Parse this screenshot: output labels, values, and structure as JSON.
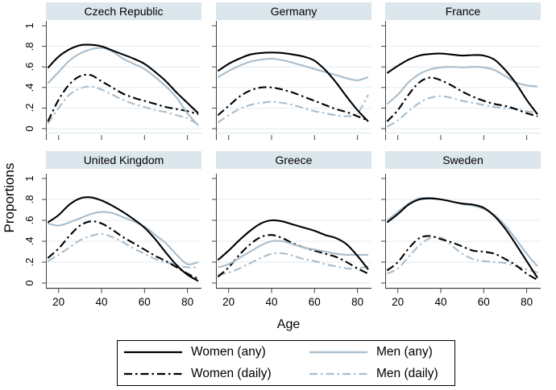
{
  "chart_data": {
    "type": "line",
    "title": "",
    "xlabel": "Age",
    "ylabel": "Proportions",
    "x": [
      15,
      20,
      25,
      30,
      35,
      40,
      45,
      50,
      55,
      60,
      65,
      70,
      75,
      80,
      85
    ],
    "xlim": [
      13,
      87
    ],
    "ylim": [
      0,
      1
    ],
    "grid": true,
    "x_tick_labels": [
      "20",
      "40",
      "60",
      "80"
    ],
    "x_tick_values": [
      20,
      40,
      60,
      80
    ],
    "y_tick_labels": [
      "0",
      ".2",
      ".4",
      ".6",
      ".8",
      "1"
    ],
    "y_tick_values": [
      0,
      0.2,
      0.4,
      0.6,
      0.8,
      1
    ],
    "legend_position": "bottom",
    "colors": {
      "women": "#000000",
      "men": "#a9bdcb",
      "panel_title_bg": "#dce6ed",
      "gridline": "#e3ebf1",
      "axis": "#444444"
    },
    "series_meta": [
      {
        "key": "women_any",
        "label": "Women (any)",
        "color": "#000000",
        "dash": "solid"
      },
      {
        "key": "men_any",
        "label": "Men (any)",
        "color": "#a9bdcb",
        "dash": "solid"
      },
      {
        "key": "women_daily",
        "label": "Women (daily)",
        "color": "#000000",
        "dash": "dashdot"
      },
      {
        "key": "men_daily",
        "label": "Men (daily)",
        "color": "#a9bdcb",
        "dash": "dashdot"
      }
    ],
    "panels": [
      {
        "title": "Czech Republic",
        "series": {
          "women_any": [
            0.59,
            0.7,
            0.77,
            0.81,
            0.815,
            0.8,
            0.76,
            0.72,
            0.68,
            0.63,
            0.55,
            0.46,
            0.35,
            0.25,
            0.15
          ],
          "men_any": [
            0.44,
            0.55,
            0.66,
            0.73,
            0.77,
            0.785,
            0.75,
            0.68,
            0.63,
            0.58,
            0.5,
            0.41,
            0.3,
            0.15,
            0.03
          ],
          "women_daily": [
            0.07,
            0.28,
            0.43,
            0.51,
            0.52,
            0.46,
            0.4,
            0.34,
            0.3,
            0.27,
            0.24,
            0.21,
            0.19,
            0.17,
            0.14
          ],
          "men_daily": [
            0.05,
            0.2,
            0.33,
            0.39,
            0.41,
            0.38,
            0.33,
            0.28,
            0.24,
            0.21,
            0.18,
            0.16,
            0.13,
            0.1,
            0.04
          ]
        }
      },
      {
        "title": "Germany",
        "series": {
          "women_any": [
            0.56,
            0.63,
            0.68,
            0.72,
            0.735,
            0.74,
            0.735,
            0.72,
            0.7,
            0.66,
            0.57,
            0.45,
            0.31,
            0.18,
            0.07
          ],
          "men_any": [
            0.5,
            0.56,
            0.61,
            0.65,
            0.67,
            0.68,
            0.665,
            0.64,
            0.61,
            0.58,
            0.55,
            0.52,
            0.49,
            0.47,
            0.5
          ],
          "women_daily": [
            0.13,
            0.22,
            0.31,
            0.37,
            0.4,
            0.4,
            0.38,
            0.35,
            0.31,
            0.27,
            0.23,
            0.19,
            0.16,
            0.12,
            0.08
          ],
          "men_daily": [
            0.06,
            0.13,
            0.19,
            0.23,
            0.25,
            0.26,
            0.25,
            0.23,
            0.2,
            0.17,
            0.15,
            0.13,
            0.12,
            0.15,
            0.33
          ]
        }
      },
      {
        "title": "France",
        "series": {
          "women_any": [
            0.54,
            0.61,
            0.67,
            0.71,
            0.725,
            0.73,
            0.72,
            0.71,
            0.715,
            0.71,
            0.67,
            0.57,
            0.44,
            0.28,
            0.14
          ],
          "men_any": [
            0.24,
            0.33,
            0.45,
            0.53,
            0.575,
            0.595,
            0.6,
            0.595,
            0.6,
            0.595,
            0.57,
            0.51,
            0.45,
            0.42,
            0.41
          ],
          "women_daily": [
            0.07,
            0.18,
            0.33,
            0.45,
            0.495,
            0.47,
            0.42,
            0.36,
            0.31,
            0.27,
            0.24,
            0.22,
            0.19,
            0.15,
            0.12
          ],
          "men_daily": [
            0.02,
            0.08,
            0.17,
            0.25,
            0.3,
            0.315,
            0.3,
            0.27,
            0.25,
            0.23,
            0.21,
            0.2,
            0.19,
            0.17,
            0.15
          ]
        }
      },
      {
        "title": "United Kingdom",
        "series": {
          "women_any": [
            0.58,
            0.65,
            0.75,
            0.81,
            0.82,
            0.79,
            0.74,
            0.68,
            0.61,
            0.53,
            0.42,
            0.29,
            0.17,
            0.08,
            0.02
          ],
          "men_any": [
            0.57,
            0.55,
            0.58,
            0.62,
            0.66,
            0.68,
            0.67,
            0.63,
            0.59,
            0.54,
            0.46,
            0.38,
            0.27,
            0.18,
            0.2
          ],
          "women_daily": [
            0.24,
            0.33,
            0.45,
            0.55,
            0.59,
            0.57,
            0.51,
            0.44,
            0.38,
            0.32,
            0.26,
            0.21,
            0.15,
            0.09,
            0.04
          ],
          "men_daily": [
            0.21,
            0.27,
            0.34,
            0.41,
            0.45,
            0.47,
            0.44,
            0.39,
            0.33,
            0.28,
            0.23,
            0.2,
            0.17,
            0.15,
            0.15
          ]
        }
      },
      {
        "title": "Greece",
        "series": {
          "women_any": [
            0.22,
            0.31,
            0.41,
            0.5,
            0.57,
            0.6,
            0.59,
            0.56,
            0.53,
            0.5,
            0.46,
            0.43,
            0.37,
            0.26,
            0.13
          ],
          "men_any": [
            0.15,
            0.18,
            0.24,
            0.3,
            0.36,
            0.4,
            0.4,
            0.37,
            0.34,
            0.32,
            0.3,
            0.28,
            0.27,
            0.27,
            0.27
          ],
          "women_daily": [
            0.06,
            0.15,
            0.27,
            0.37,
            0.44,
            0.46,
            0.43,
            0.38,
            0.34,
            0.31,
            0.28,
            0.25,
            0.2,
            0.14,
            0.09
          ],
          "men_daily": [
            0.08,
            0.1,
            0.14,
            0.19,
            0.24,
            0.28,
            0.285,
            0.26,
            0.23,
            0.21,
            0.18,
            0.16,
            0.14,
            0.14,
            0.16
          ]
        }
      },
      {
        "title": "Sweden",
        "series": {
          "women_any": [
            0.58,
            0.66,
            0.75,
            0.8,
            0.81,
            0.8,
            0.78,
            0.76,
            0.75,
            0.72,
            0.64,
            0.52,
            0.37,
            0.21,
            0.05
          ],
          "men_any": [
            0.6,
            0.68,
            0.76,
            0.81,
            0.815,
            0.8,
            0.78,
            0.755,
            0.74,
            0.71,
            0.65,
            0.55,
            0.42,
            0.28,
            0.16
          ],
          "women_daily": [
            0.12,
            0.2,
            0.33,
            0.43,
            0.45,
            0.42,
            0.39,
            0.35,
            0.31,
            0.3,
            0.28,
            0.23,
            0.17,
            0.09,
            0.03
          ],
          "men_daily": [
            0.09,
            0.14,
            0.25,
            0.36,
            0.43,
            0.435,
            0.36,
            0.28,
            0.23,
            0.21,
            0.2,
            0.19,
            0.16,
            0.13,
            0.1
          ]
        }
      }
    ]
  }
}
